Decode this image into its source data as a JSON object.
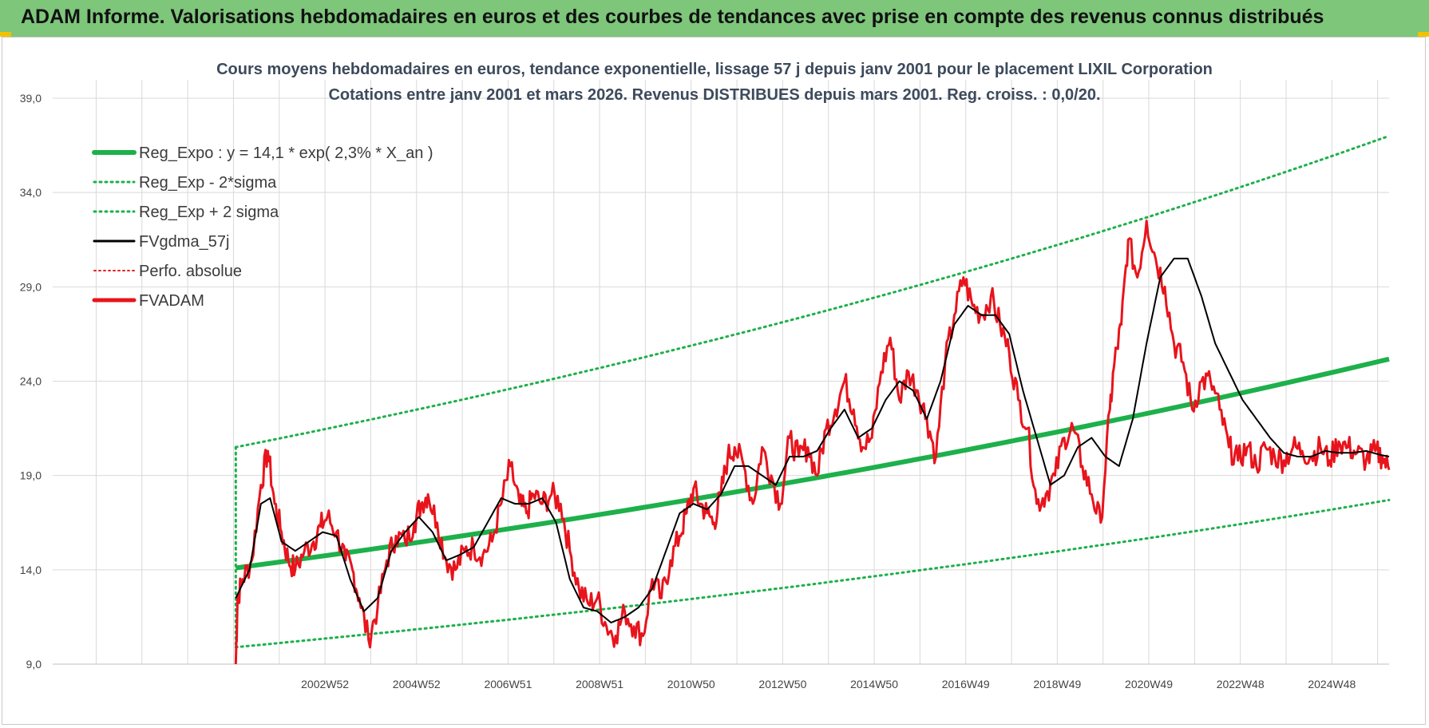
{
  "banner": {
    "title": "ADAM Informe. Valorisations hebdomadaires en euros et des courbes de tendances avec prise en compte des revenus connus distribués"
  },
  "colors": {
    "banner_bg": "#7dc67a",
    "reg_expo": "#1db04b",
    "bands": "#1db04b",
    "fvgdma": "#000000",
    "perfo": "#e02020",
    "fvadam": "#e8141c",
    "grid": "#d9d9d9"
  },
  "chart_data": {
    "type": "line",
    "title": "Cours moyens hebdomadaires en euros, tendance exponentielle, lissage 57 j depuis janv 2001 pour le placement LIXIL Corporation",
    "subtitle": "Cotations entre janv 2001 et mars 2026. Revenus DISTRIBUES depuis mars 2001. Reg. croiss. : 0,0/20.",
    "xlabel": "",
    "ylabel": "",
    "ylim": [
      9,
      40
    ],
    "yticks": [
      "9,0",
      "14,0",
      "19,0",
      "24,0",
      "29,0",
      "34,0",
      "39,0"
    ],
    "ytick_values": [
      9,
      14,
      19,
      24,
      29,
      34,
      39
    ],
    "xlim": [
      1997.0,
      2026.2
    ],
    "xtick_labels": [
      "2002W52",
      "2004W52",
      "2006W51",
      "2008W51",
      "2010W50",
      "2012W50",
      "2014W50",
      "2016W49",
      "2018W49",
      "2020W49",
      "2022W48",
      "2024W48"
    ],
    "xtick_values": [
      2002.95,
      2004.95,
      2006.95,
      2008.95,
      2010.95,
      2012.95,
      2014.95,
      2016.95,
      2018.95,
      2020.95,
      2022.95,
      2024.95
    ],
    "grid": true,
    "legend_position": "top-left",
    "legend": [
      {
        "key": "reg_expo",
        "label": "Reg_Expo : y = 14,1 * exp( 2,3% *  X_an )",
        "style": "thick"
      },
      {
        "key": "lower",
        "label": "Reg_Exp - 2*sigma",
        "style": "dotted-green"
      },
      {
        "key": "upper",
        "label": "Reg_Exp + 2 sigma",
        "style": "dotted-green"
      },
      {
        "key": "fvgdma",
        "label": "FVgdma_57j",
        "style": "black"
      },
      {
        "key": "perfo",
        "label": "Perfo. absolue",
        "style": "dotted-red"
      },
      {
        "key": "fvadam",
        "label": "FVADAM",
        "style": "red"
      }
    ],
    "regression": {
      "name": "Reg_Expo",
      "a": 14.1,
      "rate": 0.023,
      "start": 2001.0,
      "end": 2026.2,
      "lower_start": 9.9,
      "lower_end": 17.7,
      "upper_start": 20.5,
      "upper_end": 37.0
    },
    "series": [
      {
        "name": "FVADAM",
        "x": [
          2001.0,
          2001.04,
          2001.15,
          2001.35,
          2001.55,
          2001.7,
          2001.85,
          2002.0,
          2002.15,
          2002.3,
          2002.5,
          2002.7,
          2002.85,
          2003.0,
          2003.2,
          2003.4,
          2003.55,
          2003.7,
          2003.9,
          2004.1,
          2004.3,
          2004.5,
          2004.7,
          2004.9,
          2005.05,
          2005.2,
          2005.4,
          2005.6,
          2005.8,
          2006.0,
          2006.2,
          2006.4,
          2006.6,
          2006.8,
          2007.0,
          2007.2,
          2007.35,
          2007.5,
          2007.7,
          2007.9,
          2008.1,
          2008.3,
          2008.5,
          2008.7,
          2008.9,
          2009.1,
          2009.3,
          2009.5,
          2009.7,
          2009.9,
          2010.1,
          2010.3,
          2010.5,
          2010.7,
          2010.85,
          2011.0,
          2011.15,
          2011.3,
          2011.45,
          2011.6,
          2011.75,
          2011.9,
          2012.1,
          2012.3,
          2012.5,
          2012.7,
          2012.9,
          2013.1,
          2013.3,
          2013.5,
          2013.7,
          2013.9,
          2014.1,
          2014.3,
          2014.5,
          2014.7,
          2014.9,
          2015.1,
          2015.3,
          2015.5,
          2015.7,
          2015.9,
          2016.1,
          2016.3,
          2016.5,
          2016.7,
          2016.9,
          2017.1,
          2017.3,
          2017.5,
          2017.7,
          2017.9,
          2018.1,
          2018.3,
          2018.5,
          2018.7,
          2018.9,
          2019.1,
          2019.3,
          2019.5,
          2019.7,
          2019.9,
          2020.1,
          2020.2,
          2020.35,
          2020.5,
          2020.7,
          2020.9,
          2021.1,
          2021.3,
          2021.5,
          2021.7,
          2021.9,
          2022.1,
          2022.3,
          2022.5,
          2022.7,
          2022.9,
          2023.1,
          2023.3,
          2023.5,
          2023.7,
          2023.9,
          2024.1,
          2024.3,
          2024.5,
          2024.7,
          2024.9,
          2025.1,
          2025.3,
          2025.5,
          2025.7,
          2025.9,
          2026.05,
          2026.2
        ],
        "values": [
          9.0,
          12.5,
          13.5,
          14.5,
          18.5,
          20.3,
          17.5,
          16.0,
          14.5,
          14.0,
          15.0,
          15.5,
          16.3,
          16.8,
          16.0,
          14.5,
          14.0,
          12.5,
          10.3,
          12.0,
          14.5,
          15.8,
          15.5,
          16.5,
          17.5,
          18.0,
          16.5,
          14.5,
          14.0,
          15.0,
          15.2,
          14.8,
          15.5,
          17.5,
          19.5,
          17.5,
          17.0,
          18.0,
          17.5,
          18.0,
          17.5,
          15.0,
          13.0,
          12.2,
          12.5,
          11.0,
          10.5,
          11.8,
          11.0,
          10.5,
          13.5,
          12.5,
          14.5,
          15.8,
          17.0,
          18.3,
          17.5,
          17.0,
          16.5,
          18.0,
          20.0,
          20.5,
          19.5,
          17.5,
          20.5,
          19.0,
          17.5,
          21.0,
          20.0,
          20.5,
          19.0,
          21.5,
          22.5,
          24.0,
          22.5,
          20.5,
          21.0,
          24.5,
          26.3,
          23.0,
          24.5,
          23.5,
          22.0,
          20.0,
          25.0,
          27.5,
          29.5,
          28.0,
          27.5,
          28.5,
          27.0,
          25.5,
          23.0,
          21.5,
          17.5,
          18.0,
          19.0,
          21.0,
          21.5,
          19.5,
          18.0,
          16.5,
          22.5,
          25.0,
          27.0,
          31.5,
          29.5,
          32.5,
          30.5,
          29.0,
          26.0,
          25.0,
          22.5,
          24.0,
          24.0,
          22.5,
          20.5,
          19.8,
          20.5,
          19.5,
          20.5,
          20.0,
          19.8,
          20.5,
          20.3,
          20.0,
          20.5,
          19.8,
          20.8,
          20.5,
          20.2,
          19.8,
          20.3,
          20.0,
          19.3
        ]
      },
      {
        "name": "FVgdma_57j",
        "x": [
          2001.0,
          2001.3,
          2001.55,
          2001.75,
          2002.0,
          2002.3,
          2002.6,
          2002.9,
          2003.2,
          2003.5,
          2003.8,
          2004.1,
          2004.4,
          2004.7,
          2005.0,
          2005.3,
          2005.6,
          2005.9,
          2006.2,
          2006.5,
          2006.8,
          2007.1,
          2007.4,
          2007.7,
          2008.0,
          2008.3,
          2008.6,
          2008.9,
          2009.2,
          2009.5,
          2009.8,
          2010.1,
          2010.4,
          2010.7,
          2011.0,
          2011.3,
          2011.6,
          2011.9,
          2012.2,
          2012.5,
          2012.8,
          2013.1,
          2013.4,
          2013.7,
          2014.0,
          2014.3,
          2014.6,
          2014.9,
          2015.2,
          2015.5,
          2015.8,
          2016.1,
          2016.4,
          2016.7,
          2017.0,
          2017.3,
          2017.6,
          2017.9,
          2018.2,
          2018.5,
          2018.8,
          2019.1,
          2019.4,
          2019.7,
          2020.0,
          2020.3,
          2020.6,
          2020.9,
          2021.2,
          2021.5,
          2021.8,
          2022.1,
          2022.4,
          2022.7,
          2023.0,
          2023.3,
          2023.6,
          2023.9,
          2024.2,
          2024.5,
          2024.8,
          2025.1,
          2025.4,
          2025.7,
          2026.0,
          2026.2
        ],
        "values": [
          12.5,
          14.0,
          17.5,
          17.8,
          15.5,
          15.0,
          15.5,
          16.0,
          15.8,
          13.5,
          11.8,
          12.5,
          15.0,
          16.0,
          16.8,
          16.0,
          14.5,
          14.8,
          15.2,
          16.5,
          17.8,
          17.5,
          17.5,
          17.8,
          16.5,
          13.5,
          12.0,
          11.8,
          11.2,
          11.5,
          12.0,
          13.0,
          15.0,
          17.0,
          17.5,
          17.2,
          18.0,
          19.5,
          19.5,
          19.0,
          18.5,
          20.0,
          20.0,
          20.3,
          21.5,
          22.5,
          21.0,
          21.5,
          23.0,
          24.0,
          23.5,
          22.0,
          24.0,
          27.0,
          28.0,
          27.5,
          27.5,
          26.5,
          23.5,
          21.0,
          18.5,
          19.0,
          20.5,
          21.0,
          20.0,
          19.5,
          22.0,
          26.0,
          29.5,
          30.5,
          30.5,
          28.5,
          26.0,
          24.5,
          23.0,
          22.0,
          21.0,
          20.2,
          20.0,
          20.0,
          20.3,
          20.2,
          20.2,
          20.3,
          20.1,
          20.0
        ]
      }
    ]
  }
}
